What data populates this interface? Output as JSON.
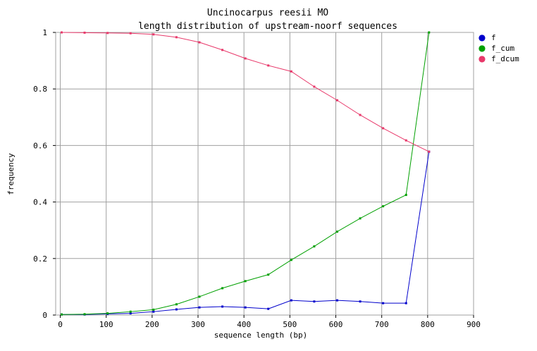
{
  "chart_data": {
    "type": "line",
    "title": "Uncinocarpus reesii MO",
    "subtitle": "length distribution of upstream-noorf sequences",
    "xlabel": "sequence length (bp)",
    "ylabel": "frequency",
    "xlim": [
      -10,
      900
    ],
    "ylim": [
      0,
      1
    ],
    "x_ticks": [
      "0",
      "100",
      "200",
      "300",
      "400",
      "500",
      "600",
      "700",
      "800",
      "900"
    ],
    "y_ticks": [
      "0",
      "0.2",
      "0.4",
      "0.6",
      "0.8",
      "1"
    ],
    "grid": true,
    "legend_position": "top-right",
    "x": [
      3,
      53,
      103,
      153,
      203,
      253,
      303,
      353,
      403,
      453,
      503,
      553,
      603,
      653,
      703,
      753,
      803
    ],
    "series": [
      {
        "name": "f",
        "color": "#0000cc",
        "values": [
          0.002,
          0.002,
          0.004,
          0.006,
          0.012,
          0.02,
          0.027,
          0.03,
          0.027,
          0.022,
          0.052,
          0.048,
          0.052,
          0.048,
          0.042,
          0.042,
          0.578
        ]
      },
      {
        "name": "f_cum",
        "color": "#00a000",
        "values": [
          0.002,
          0.003,
          0.006,
          0.012,
          0.019,
          0.038,
          0.065,
          0.095,
          0.12,
          0.143,
          0.195,
          0.243,
          0.295,
          0.342,
          0.385,
          0.425,
          1.0
        ]
      },
      {
        "name": "f_dcum",
        "color": "#e8386a",
        "values": [
          1.0,
          0.999,
          0.998,
          0.997,
          0.993,
          0.983,
          0.965,
          0.938,
          0.908,
          0.883,
          0.862,
          0.808,
          0.76,
          0.708,
          0.661,
          0.618,
          0.578
        ]
      }
    ]
  }
}
